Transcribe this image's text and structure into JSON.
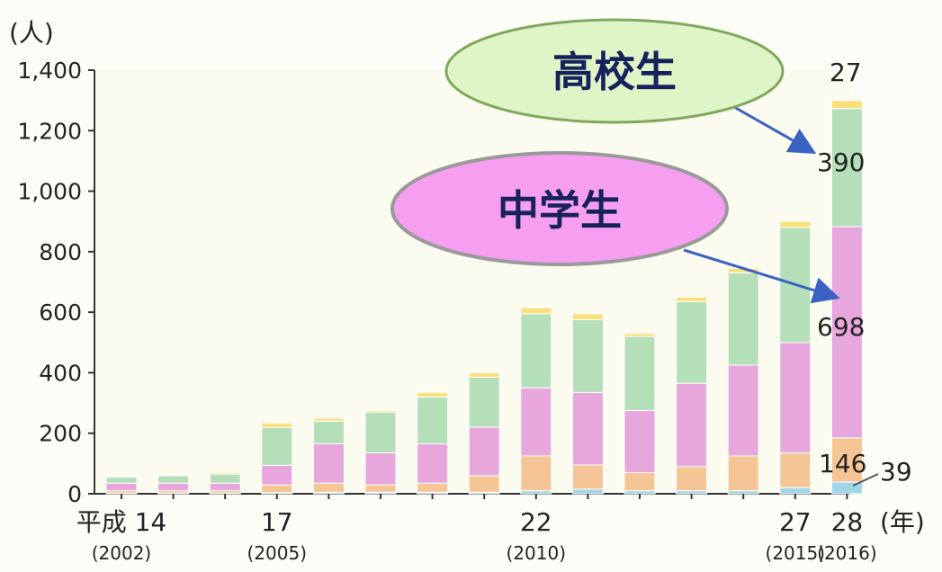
{
  "chart_data": {
    "type": "bar",
    "stacked": true,
    "ylabel": "(人)",
    "xlabel": "(年)",
    "ylim": [
      0,
      1400
    ],
    "yticks": [
      "0",
      "200",
      "400",
      "600",
      "800",
      "1,000",
      "1,200",
      "1,400"
    ],
    "ytick_values": [
      0,
      200,
      400,
      600,
      800,
      1000,
      1200,
      1400
    ],
    "x": [
      "2002",
      "2003",
      "2004",
      "2005",
      "2006",
      "2007",
      "2008",
      "2009",
      "2010",
      "2011",
      "2012",
      "2013",
      "2014",
      "2015",
      "2016"
    ],
    "x_tick_labels": [
      {
        "index": 0,
        "label": "平成 14",
        "sub": "(2002)"
      },
      {
        "index": 3,
        "label": "17",
        "sub": "(2005)"
      },
      {
        "index": 8,
        "label": "22",
        "sub": "(2010)"
      },
      {
        "index": 13,
        "label": "27",
        "sub": "(2015)"
      },
      {
        "index": 14,
        "label": "28",
        "sub": "(2016)"
      }
    ],
    "series": [
      {
        "color": "#9fd7e6",
        "values": [
          2,
          2,
          2,
          4,
          5,
          5,
          5,
          5,
          10,
          15,
          10,
          10,
          10,
          20,
          39
        ]
      },
      {
        "color": "#f6c596",
        "values": [
          8,
          8,
          8,
          25,
          30,
          25,
          30,
          55,
          115,
          80,
          60,
          80,
          115,
          115,
          146
        ]
      },
      {
        "color": "#e7a6dc",
        "values": [
          25,
          25,
          25,
          65,
          130,
          105,
          130,
          160,
          225,
          240,
          205,
          275,
          300,
          365,
          698
        ]
      },
      {
        "color": "#b5dfb8",
        "values": [
          20,
          25,
          30,
          125,
          75,
          135,
          155,
          165,
          245,
          240,
          245,
          270,
          305,
          380,
          390
        ]
      },
      {
        "color": "#f9e07a",
        "values": [
          3,
          3,
          5,
          15,
          10,
          5,
          15,
          15,
          20,
          20,
          10,
          15,
          15,
          20,
          27
        ]
      }
    ],
    "data_labels": [
      "27",
      "390",
      "698",
      "146",
      "39"
    ],
    "annotations": {
      "high_school": "高校生",
      "middle_school": "中学生"
    }
  }
}
